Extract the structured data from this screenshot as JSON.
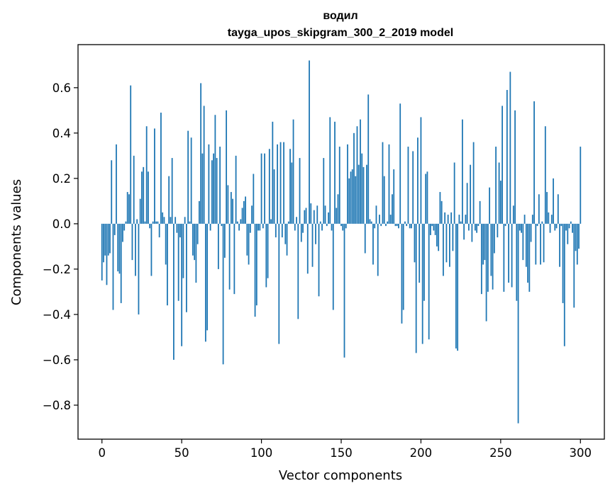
{
  "chart_data": {
    "type": "bar",
    "title": "водил",
    "subtitle": "tayga_upos_skipgram_300_2_2019 model",
    "xlabel": "Vector components",
    "ylabel": "Components values",
    "xlim": [
      -15,
      315
    ],
    "ylim": [
      -0.95,
      0.79
    ],
    "xticks": [
      0,
      50,
      100,
      150,
      200,
      250,
      300
    ],
    "xtick_labels": [
      "0",
      "50",
      "100",
      "150",
      "200",
      "250",
      "300"
    ],
    "yticks": [
      -0.8,
      -0.6,
      -0.4,
      -0.2,
      0.0,
      0.2,
      0.4,
      0.6
    ],
    "ytick_labels": [
      "−0.8",
      "−0.6",
      "−0.4",
      "−0.2",
      "0.0",
      "0.2",
      "0.4",
      "0.6"
    ],
    "bar_color": "#1f77b4",
    "values": [
      -0.25,
      -0.17,
      -0.14,
      -0.27,
      -0.14,
      -0.13,
      0.28,
      -0.38,
      -0.05,
      0.35,
      -0.21,
      -0.22,
      -0.35,
      -0.08,
      -0.03,
      0.01,
      0.14,
      0.13,
      0.61,
      -0.16,
      0.3,
      -0.23,
      0.02,
      -0.4,
      0.11,
      0.23,
      0.25,
      0.01,
      0.43,
      0.23,
      -0.02,
      -0.23,
      0.01,
      0.42,
      0.01,
      0.01,
      -0.06,
      0.49,
      0.05,
      0.03,
      -0.18,
      -0.36,
      0.21,
      0.03,
      0.29,
      -0.6,
      0.03,
      -0.04,
      -0.34,
      -0.06,
      -0.54,
      -0.24,
      0.03,
      -0.39,
      0.41,
      0.01,
      0.38,
      -0.14,
      -0.16,
      -0.26,
      -0.09,
      0.1,
      0.62,
      0.31,
      0.52,
      -0.52,
      -0.47,
      0.35,
      -0.03,
      0.28,
      0.31,
      0.48,
      0.29,
      -0.2,
      0.34,
      -0.01,
      -0.62,
      -0.15,
      0.5,
      0.17,
      -0.29,
      0.14,
      0.11,
      -0.31,
      0.3,
      0.01,
      -0.03,
      0.02,
      0.07,
      0.1,
      0.12,
      -0.14,
      -0.18,
      -0.04,
      0.08,
      0.22,
      -0.41,
      -0.36,
      -0.03,
      -0.03,
      0.31,
      -0.02,
      0.31,
      -0.28,
      -0.24,
      0.33,
      0.02,
      0.45,
      0.24,
      -0.06,
      0.35,
      -0.53,
      0.36,
      -0.06,
      0.36,
      -0.09,
      -0.14,
      0.01,
      0.33,
      0.27,
      0.46,
      -0.03,
      0.03,
      -0.42,
      0.29,
      -0.08,
      -0.04,
      0.06,
      0.07,
      -0.22,
      0.72,
      0.09,
      -0.19,
      0.06,
      -0.09,
      0.08,
      -0.32,
      0.01,
      -0.03,
      0.29,
      0.08,
      -0.01,
      0.05,
      0.47,
      -0.03,
      -0.38,
      0.45,
      0.07,
      0.13,
      0.34,
      -0.01,
      -0.03,
      -0.59,
      -0.02,
      0.35,
      0.2,
      0.23,
      0.24,
      0.4,
      0.21,
      0.43,
      0.26,
      0.46,
      0.31,
      0.25,
      -0.13,
      0.26,
      0.57,
      0.02,
      0.01,
      -0.18,
      -0.02,
      0.08,
      -0.23,
      0.04,
      -0.01,
      0.36,
      0.21,
      -0.01,
      0.01,
      0.35,
      0.04,
      0.13,
      0.24,
      -0.01,
      -0.01,
      -0.02,
      0.53,
      -0.44,
      -0.38,
      0.01,
      -0.01,
      0.34,
      -0.02,
      -0.02,
      0.32,
      -0.17,
      -0.57,
      0.38,
      -0.26,
      0.47,
      -0.53,
      -0.34,
      0.22,
      0.23,
      -0.51,
      -0.05,
      -0.01,
      -0.03,
      -0.05,
      -0.1,
      -0.12,
      0.14,
      0.1,
      -0.23,
      0.05,
      -0.17,
      0.04,
      -0.19,
      0.05,
      -0.12,
      0.27,
      -0.55,
      -0.56,
      0.04,
      0.01,
      0.46,
      -0.07,
      0.04,
      0.18,
      -0.03,
      0.26,
      -0.08,
      0.36,
      -0.03,
      -0.04,
      -0.01,
      0.1,
      -0.31,
      -0.18,
      -0.16,
      -0.43,
      -0.3,
      0.16,
      -0.23,
      -0.29,
      -0.13,
      0.34,
      -0.06,
      0.27,
      0.19,
      0.52,
      -0.3,
      -0.01,
      0.59,
      -0.26,
      0.67,
      -0.28,
      0.08,
      0.5,
      -0.34,
      -0.88,
      -0.03,
      -0.04,
      -0.16,
      0.04,
      -0.19,
      -0.26,
      -0.3,
      -0.08,
      0.04,
      0.54,
      -0.18,
      -0.01,
      0.13,
      -0.18,
      0.01,
      -0.17,
      0.43,
      0.14,
      0.05,
      -0.04,
      0.04,
      0.2,
      -0.03,
      -0.02,
      0.13,
      -0.19,
      -0.01,
      -0.35,
      -0.54,
      -0.03,
      -0.09,
      -0.02,
      0.01,
      -0.04,
      -0.37,
      -0.12,
      -0.18,
      -0.11,
      0.34
    ]
  }
}
